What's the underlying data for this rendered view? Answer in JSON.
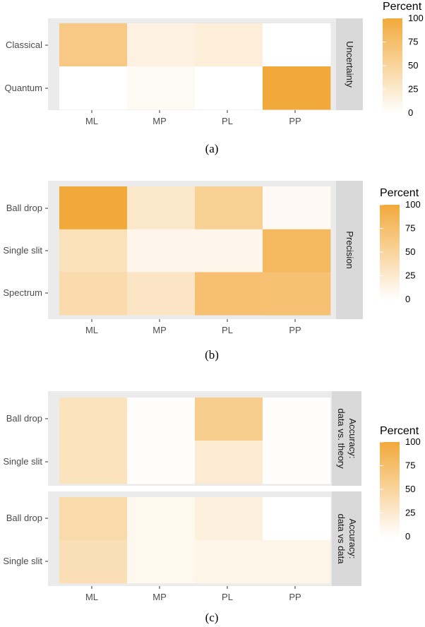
{
  "colors": {
    "low": "#ffffff",
    "high": "#f2a93b",
    "panel_bg": "#ebebeb",
    "strip_bg": "#d9d9d9"
  },
  "chart_data": [
    {
      "type": "heatmap",
      "caption": "(a)",
      "x": [
        "ML",
        "MP",
        "PL",
        "PP"
      ],
      "legend": {
        "title": "Percent",
        "ticks": [
          0,
          25,
          50,
          75,
          100
        ],
        "position": "right"
      },
      "facets": [
        {
          "strip": [
            "Uncertainty"
          ],
          "y": [
            "Classical",
            "Quantum"
          ],
          "values": [
            [
              63,
              15,
              20,
              0
            ],
            [
              0,
              5,
              0,
              100
            ]
          ]
        }
      ]
    },
    {
      "type": "heatmap",
      "caption": "(b)",
      "x": [
        "ML",
        "MP",
        "PL",
        "PP"
      ],
      "legend": {
        "title": "Percent",
        "ticks": [
          0,
          25,
          50,
          75,
          100
        ],
        "position": "right"
      },
      "facets": [
        {
          "strip": [
            "Precision"
          ],
          "y": [
            "Ball drop",
            "Single slit",
            "Spectrum"
          ],
          "values": [
            [
              100,
              27,
              55,
              6
            ],
            [
              35,
              10,
              10,
              82
            ],
            [
              42,
              30,
              73,
              72
            ]
          ]
        }
      ]
    },
    {
      "type": "heatmap",
      "caption": "(c)",
      "x": [
        "ML",
        "MP",
        "PL",
        "PP"
      ],
      "legend": {
        "title": "Percent",
        "ticks": [
          0,
          25,
          50,
          75,
          100
        ],
        "position": "right"
      },
      "facets": [
        {
          "strip": [
            "Accuracy:",
            "data vs. theory"
          ],
          "y": [
            "Ball drop",
            "Single slit"
          ],
          "values": [
            [
              33,
              2,
              58,
              2
            ],
            [
              33,
              2,
              23,
              2
            ]
          ]
        },
        {
          "strip": [
            "Accuracy:",
            "data vs data"
          ],
          "y": [
            "Ball drop",
            "Single slit"
          ],
          "values": [
            [
              43,
              8,
              18,
              0
            ],
            [
              38,
              8,
              12,
              12
            ]
          ]
        }
      ]
    }
  ]
}
